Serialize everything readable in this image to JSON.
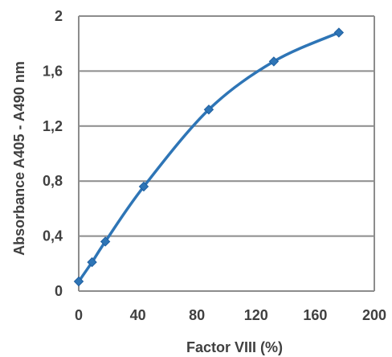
{
  "chart_data": {
    "type": "line",
    "title": "",
    "xlabel": "Factor VIII (%)",
    "ylabel": "Absorbance A405 - A490 nm",
    "xlim": [
      0,
      200
    ],
    "ylim": [
      0,
      2
    ],
    "x_ticks": [
      0,
      40,
      80,
      120,
      160,
      200
    ],
    "x_tick_labels": [
      "0",
      "40",
      "80",
      "120",
      "160",
      "200"
    ],
    "y_ticks": [
      0,
      0.4,
      0.8,
      1.2,
      1.6,
      2
    ],
    "y_tick_labels": [
      "0",
      "0,4",
      "0,8",
      "1,2",
      "1,6",
      "2"
    ],
    "grid": "horizontal",
    "legend": "none",
    "series": [
      {
        "color": "#2e75b6",
        "marker": "diamond",
        "smooth": true,
        "points": [
          {
            "x": 0,
            "y": 0.07
          },
          {
            "x": 9,
            "y": 0.21
          },
          {
            "x": 18,
            "y": 0.36
          },
          {
            "x": 44,
            "y": 0.76
          },
          {
            "x": 88,
            "y": 1.32
          },
          {
            "x": 132,
            "y": 1.67
          },
          {
            "x": 176,
            "y": 1.88
          }
        ]
      }
    ]
  }
}
